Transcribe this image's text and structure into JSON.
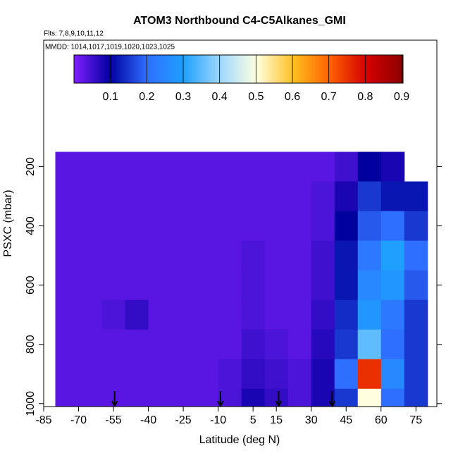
{
  "chart_data": {
    "type": "heatmap",
    "title": "ATOM3 Northbound C4-C5Alkanes_GMI",
    "subtitle": "Flts: 7,8,9,10,11,12",
    "annotation": "MMDD: 1014,1017,1019,1020,1023,1025",
    "x_label": "Latitude (deg N)",
    "y_label": "PSXC (mbar)",
    "x": [
      -75,
      -65,
      -55,
      -45,
      -35,
      -25,
      -15,
      -5,
      5,
      15,
      25,
      35,
      45,
      55,
      65,
      75
    ],
    "y": [
      200,
      300,
      400,
      500,
      600,
      700,
      800,
      900,
      1000
    ],
    "z": [
      [
        0.03,
        0.03,
        0.03,
        0.03,
        0.03,
        0.03,
        0.03,
        0.03,
        0.03,
        0.03,
        0.03,
        0.03,
        0.05,
        0.1,
        0.08,
        null
      ],
      [
        0.03,
        0.03,
        0.03,
        0.03,
        0.03,
        0.03,
        0.03,
        0.03,
        0.03,
        0.03,
        0.03,
        0.04,
        0.08,
        0.15,
        0.12,
        0.12
      ],
      [
        0.03,
        0.03,
        0.03,
        0.03,
        0.03,
        0.03,
        0.03,
        0.03,
        0.03,
        0.03,
        0.03,
        0.04,
        0.1,
        0.18,
        0.2,
        0.15
      ],
      [
        0.03,
        0.03,
        0.03,
        0.03,
        0.03,
        0.03,
        0.03,
        0.03,
        0.04,
        0.03,
        0.03,
        0.05,
        0.12,
        0.22,
        0.3,
        0.2
      ],
      [
        0.03,
        0.03,
        0.03,
        0.03,
        0.03,
        0.03,
        0.03,
        0.03,
        0.04,
        0.03,
        0.03,
        0.05,
        0.12,
        0.25,
        0.28,
        0.18
      ],
      [
        0.03,
        0.03,
        0.04,
        0.06,
        0.03,
        0.03,
        0.03,
        0.03,
        0.04,
        0.03,
        0.03,
        0.06,
        0.14,
        0.28,
        0.22,
        0.15
      ],
      [
        0.03,
        0.03,
        0.03,
        0.03,
        0.03,
        0.03,
        0.03,
        0.03,
        0.05,
        0.04,
        0.03,
        0.07,
        0.15,
        0.35,
        0.2,
        0.15
      ],
      [
        0.03,
        0.03,
        0.03,
        0.03,
        0.03,
        0.03,
        0.03,
        0.04,
        0.06,
        0.05,
        0.04,
        0.08,
        0.2,
        0.75,
        0.25,
        0.15
      ],
      [
        0.03,
        0.03,
        0.03,
        0.03,
        0.03,
        0.03,
        0.03,
        0.04,
        0.08,
        0.06,
        0.04,
        0.08,
        0.15,
        0.5,
        0.2,
        0.15
      ]
    ],
    "xlim": [
      -85,
      84
    ],
    "xticks": [
      -85,
      -70,
      -55,
      -40,
      -25,
      -10,
      5,
      15,
      30,
      45,
      60,
      75
    ],
    "ylim": [
      1010,
      -227
    ],
    "yticks": [
      200,
      400,
      600,
      800,
      1000
    ],
    "zlim": [
      0,
      0.9
    ],
    "zticks": [
      0.1,
      0.2,
      0.3,
      0.4,
      0.5,
      0.6,
      0.7,
      0.8,
      0.9
    ],
    "colors": [
      "#7f1fff",
      "#00009f",
      "#2f6fff",
      "#1fa0ff",
      "#9fd8ff",
      "#ffffe0",
      "#ffc020",
      "#ff6000",
      "#d40000",
      "#8b0000"
    ],
    "arrows": [
      -54.5,
      -9,
      16,
      39
    ]
  }
}
